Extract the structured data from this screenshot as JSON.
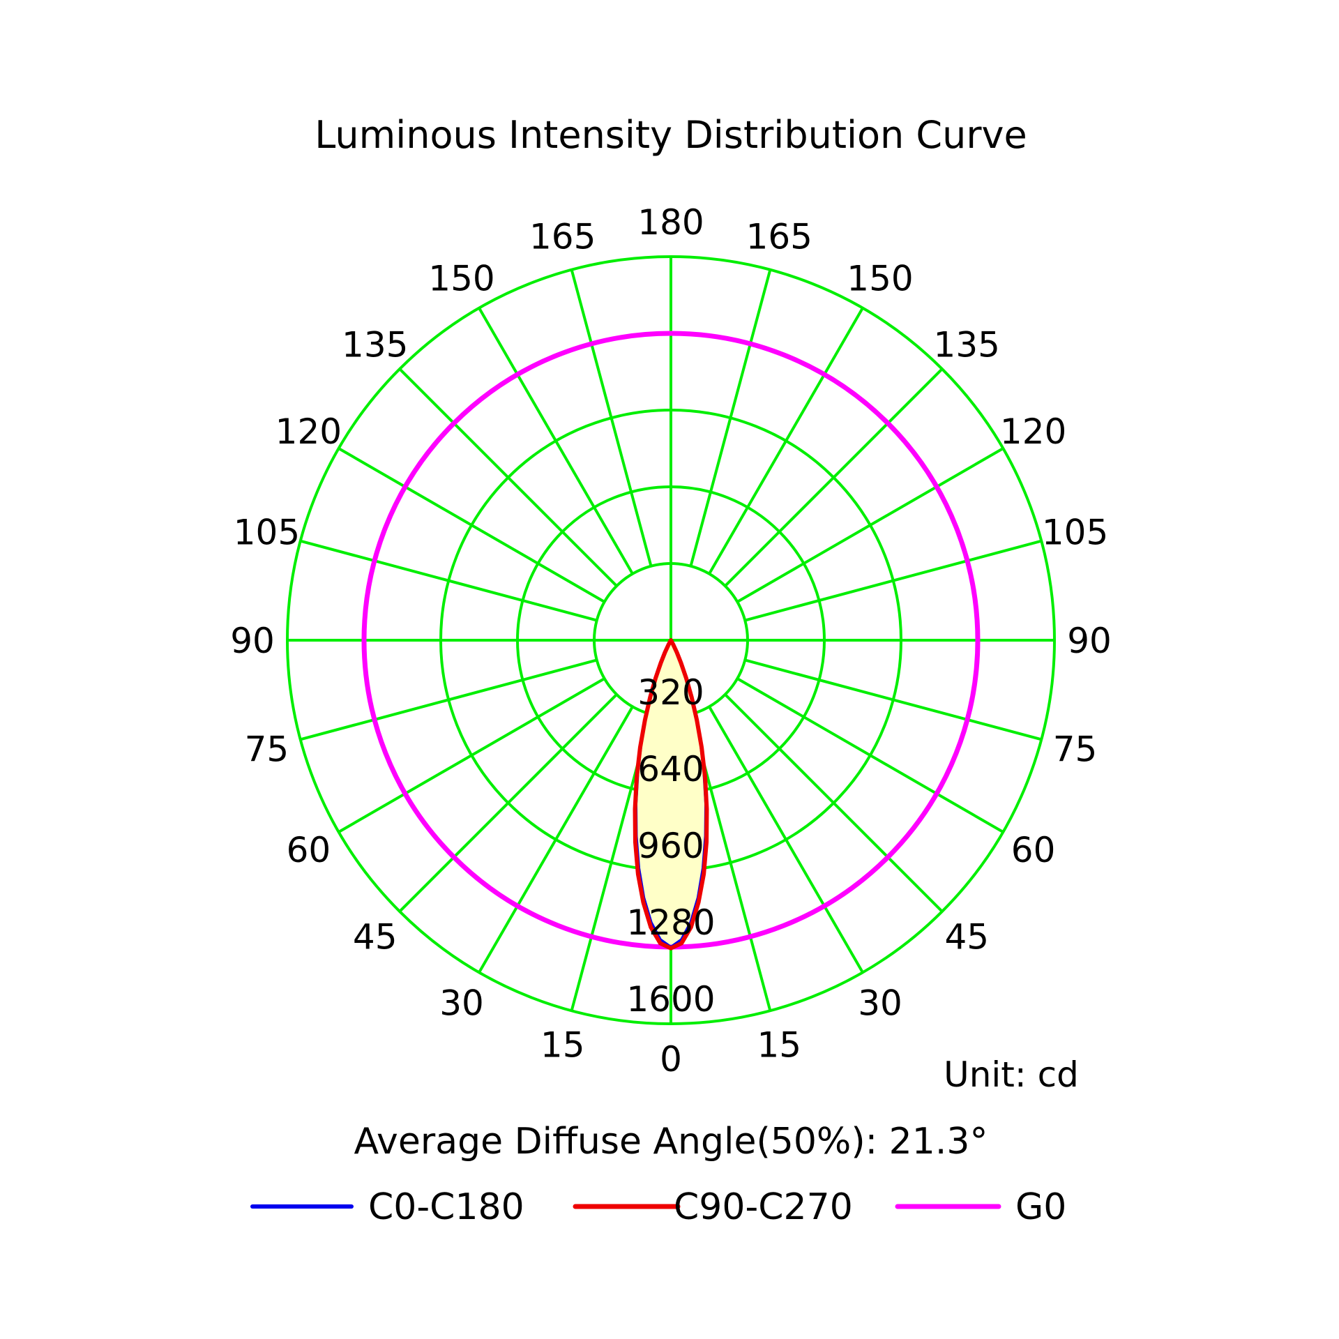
{
  "chart_data": {
    "type": "polar",
    "title": "Luminous Intensity Distribution Curve",
    "unit_label": "Unit: cd",
    "footer": "Average Diffuse Angle(50%): 21.3°",
    "grid": true,
    "radial_max": 1600,
    "radial_ticks": [
      320,
      640,
      960,
      1280,
      1600
    ],
    "radial_tick_labels": [
      "320",
      "640",
      "960",
      "1280",
      "1600"
    ],
    "angle_labels_left": [
      "0",
      "15",
      "30",
      "45",
      "60",
      "75",
      "90",
      "105",
      "120",
      "135",
      "150",
      "165",
      "180"
    ],
    "angle_labels_right": [
      "15",
      "30",
      "45",
      "60",
      "75",
      "90",
      "105",
      "120",
      "135",
      "150",
      "165"
    ],
    "legend_position": "bottom",
    "colors": {
      "grid": "#00ee00",
      "fill": "#ffffc8",
      "c0": "#0000ee",
      "c90": "#ee0000",
      "g0": "#ff00ff"
    },
    "series": [
      {
        "name": "C0-C180",
        "color": "#0000ee",
        "gamma": [
          0,
          2,
          4,
          6,
          8,
          10,
          12,
          14,
          16,
          18,
          20,
          22,
          24,
          26,
          28,
          30
        ],
        "values": [
          1280,
          1250,
          1180,
          1080,
          960,
          830,
          700,
          570,
          450,
          340,
          245,
          165,
          100,
          55,
          20,
          0
        ]
      },
      {
        "name": "C90-C270",
        "color": "#ee0000",
        "gamma": [
          0,
          2,
          4,
          6,
          8,
          10,
          12,
          14,
          16,
          18,
          20,
          22,
          24,
          26,
          28,
          30
        ],
        "values": [
          1285,
          1265,
          1200,
          1100,
          985,
          855,
          720,
          590,
          465,
          350,
          252,
          170,
          103,
          57,
          21,
          0
        ]
      },
      {
        "name": "G0",
        "color": "#ff00ff",
        "constant_value": 1280
      }
    ]
  }
}
